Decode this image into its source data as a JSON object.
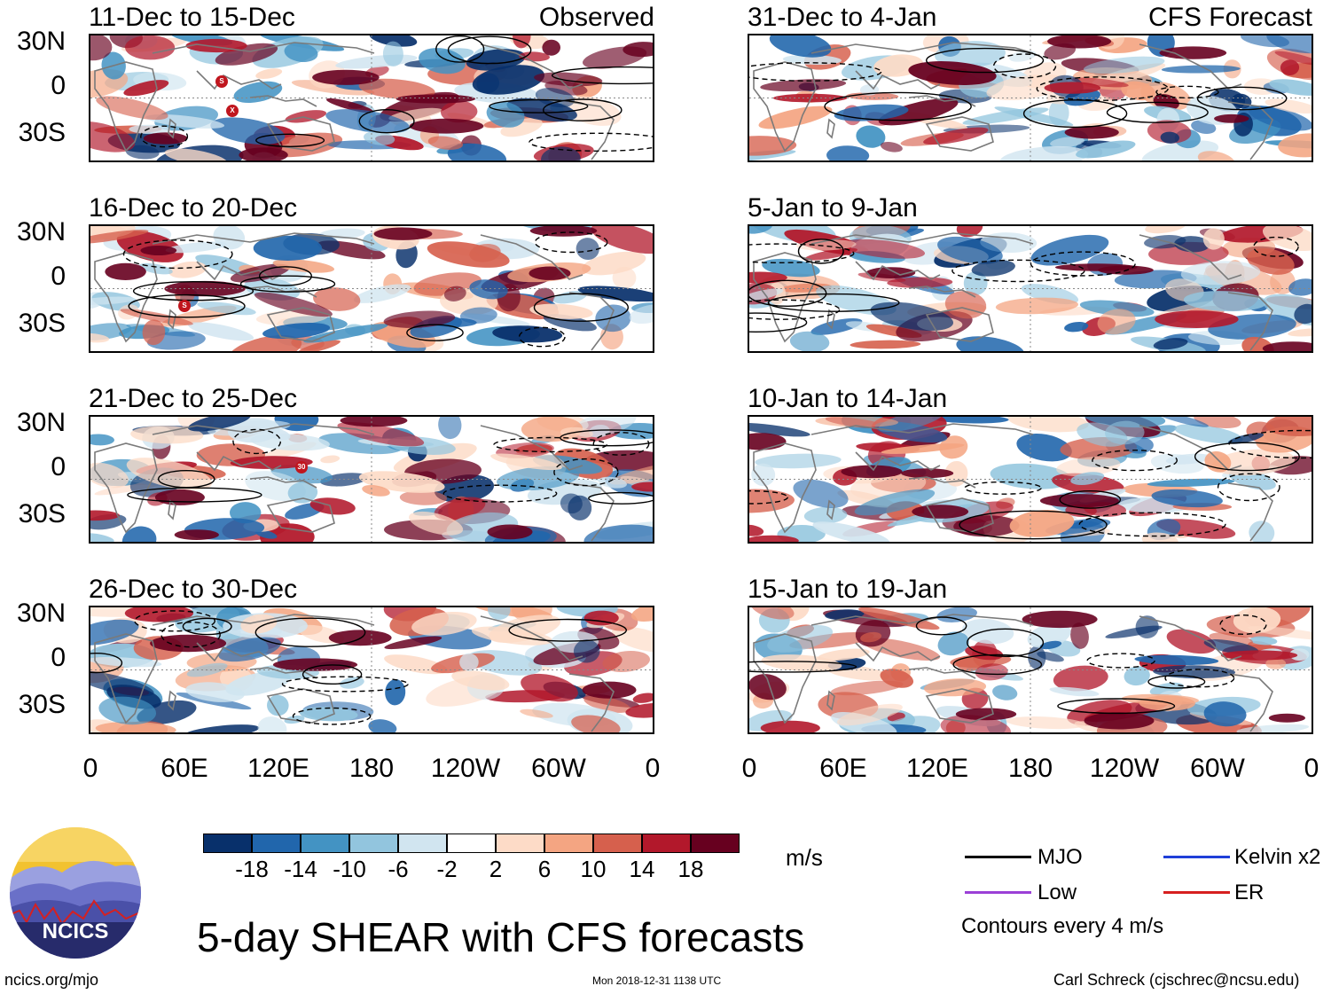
{
  "colors": {
    "scale": [
      "#08306b",
      "#2166ac",
      "#4393c3",
      "#92c5de",
      "#d1e5f0",
      "#ffffff",
      "#fddbc7",
      "#f4a582",
      "#d6604d",
      "#b2182b",
      "#67001f"
    ],
    "mjo": "#000000",
    "kelvin": "#1f3fd8",
    "low": "#9b40d6",
    "er": "#d62020",
    "coast": "#7a7a7a",
    "logo_sky": "#f2c230",
    "logo_mountain": "#5a5fb5",
    "logo_dark": "#272b6b"
  },
  "panels": {
    "left": [
      {
        "title": "11-Dec to 15-Dec",
        "tag": "Observed"
      },
      {
        "title": "16-Dec to 20-Dec",
        "tag": ""
      },
      {
        "title": "21-Dec to 25-Dec",
        "tag": ""
      },
      {
        "title": "26-Dec to 30-Dec",
        "tag": ""
      }
    ],
    "right": [
      {
        "title": "31-Dec to 4-Jan",
        "tag": "CFS Forecast"
      },
      {
        "title": "5-Jan to 9-Jan",
        "tag": ""
      },
      {
        "title": "10-Jan to 14-Jan",
        "tag": ""
      },
      {
        "title": "15-Jan to 19-Jan",
        "tag": ""
      }
    ]
  },
  "axes": {
    "lat_labels": [
      "30N",
      "0",
      "30S"
    ],
    "lon_labels": [
      "0",
      "60E",
      "120E",
      "180",
      "120W",
      "60W",
      "0"
    ]
  },
  "storms": [
    "S",
    "X",
    "S",
    "30"
  ],
  "colorbar": {
    "labels": [
      "-18",
      "-14",
      "-10",
      "-6",
      "-2",
      "2",
      "6",
      "10",
      "14",
      "18"
    ],
    "units": "m/s"
  },
  "legend": {
    "mjo": "MJO",
    "kelvin": "Kelvin x2",
    "low": "Low",
    "er": "ER",
    "contours": "Contours every 4 m/s"
  },
  "logo_text": "NCICS",
  "title": "5-day SHEAR with CFS forecasts",
  "footer": {
    "site": "ncics.org/mjo",
    "timestamp": "Mon 2018-12-31 1138 UTC",
    "author": "Carl Schreck (cjschrec@ncsu.edu)"
  }
}
